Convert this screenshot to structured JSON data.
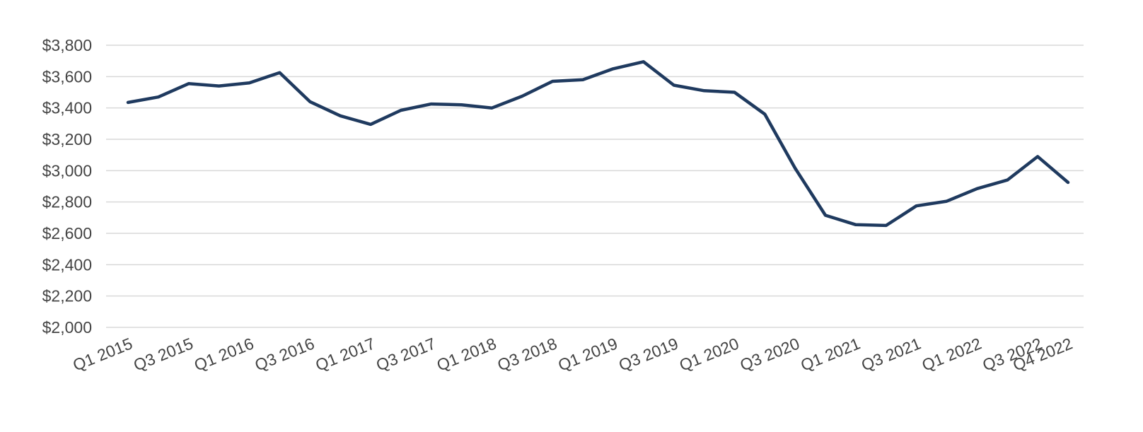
{
  "chart_data": {
    "type": "line",
    "title": "",
    "xlabel": "",
    "ylabel": "",
    "x": [
      "Q1 2015",
      "Q2 2015",
      "Q3 2015",
      "Q4 2015",
      "Q1 2016",
      "Q2 2016",
      "Q3 2016",
      "Q4 2016",
      "Q1 2017",
      "Q2 2017",
      "Q3 2017",
      "Q4 2017",
      "Q1 2018",
      "Q2 2018",
      "Q3 2018",
      "Q4 2018",
      "Q1 2019",
      "Q2 2019",
      "Q3 2019",
      "Q4 2019",
      "Q1 2020",
      "Q2 2020",
      "Q3 2020",
      "Q4 2020",
      "Q1 2021",
      "Q2 2021",
      "Q3 2021",
      "Q4 2021",
      "Q1 2022",
      "Q2 2022",
      "Q3 2022",
      "Q4 2022"
    ],
    "x_tick_labels": [
      "Q1 2015",
      "Q3 2015",
      "Q1 2016",
      "Q3 2016",
      "Q1 2017",
      "Q3 2017",
      "Q1 2018",
      "Q3 2018",
      "Q1 2019",
      "Q3 2019",
      "Q1 2020",
      "Q3 2020",
      "Q1 2021",
      "Q3 2021",
      "Q1 2022",
      "Q3 2022",
      "Q4 2022"
    ],
    "series": [
      {
        "values": [
          3435,
          3470,
          3555,
          3540,
          3560,
          3625,
          3440,
          3350,
          3295,
          3385,
          3425,
          3420,
          3400,
          3475,
          3570,
          3580,
          3650,
          3695,
          3545,
          3510,
          3500,
          3360,
          3015,
          2715,
          2655,
          2650,
          2775,
          2805,
          2885,
          2940,
          3090,
          2925
        ]
      }
    ],
    "ylim": [
      2000,
      3800
    ],
    "y_ticks": [
      "$2,000",
      "$2,200",
      "$2,400",
      "$2,600",
      "$2,800",
      "$3,000",
      "$3,200",
      "$3,400",
      "$3,600",
      "$3,800"
    ],
    "grid": "horizontal",
    "legend": "none",
    "colors": {
      "line": "#1f3a5f",
      "grid": "#d9d9d9",
      "text": "#444444"
    }
  }
}
